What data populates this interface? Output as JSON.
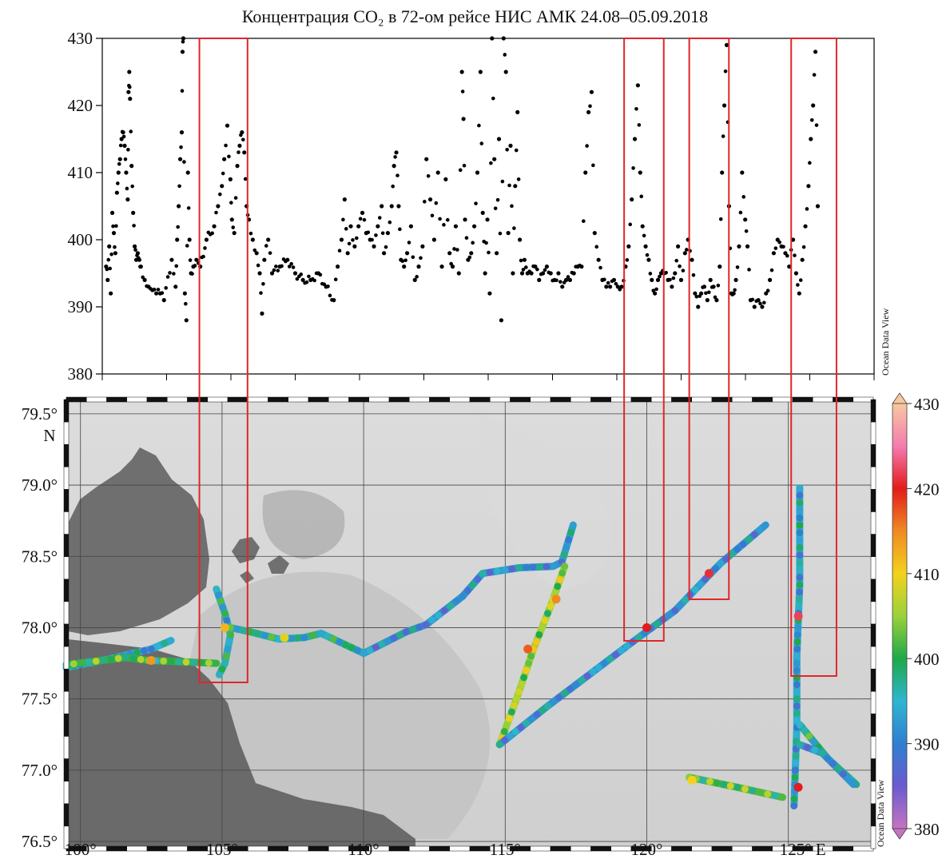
{
  "title": "Концентрация CO₂ в 72-ом рейсе НИС АМК 24.08–05.09.2018",
  "watermark": "Ocean Data View",
  "chart_data": [
    {
      "type": "scatter",
      "name": "co2_timeseries",
      "ylim": [
        380,
        430
      ],
      "yticks": [
        "380",
        "390",
        "400",
        "410",
        "420",
        "430"
      ],
      "marker_color": "#000000",
      "points": [
        [
          0.005,
          396
        ],
        [
          0.007,
          394
        ],
        [
          0.009,
          399
        ],
        [
          0.011,
          392
        ],
        [
          0.013,
          404
        ],
        [
          0.015,
          401
        ],
        [
          0.017,
          398
        ],
        [
          0.019,
          407
        ],
        [
          0.021,
          410
        ],
        [
          0.023,
          412
        ],
        [
          0.025,
          415
        ],
        [
          0.027,
          416
        ],
        [
          0.029,
          414
        ],
        [
          0.031,
          410
        ],
        [
          0.033,
          406
        ],
        [
          0.034,
          422
        ],
        [
          0.035,
          425
        ],
        [
          0.036,
          421
        ],
        [
          0.038,
          411
        ],
        [
          0.04,
          404
        ],
        [
          0.042,
          399
        ],
        [
          0.044,
          397
        ],
        [
          0.046,
          398
        ],
        [
          0.048,
          397
        ],
        [
          0.05,
          396
        ],
        [
          0.055,
          394
        ],
        [
          0.06,
          393
        ],
        [
          0.065,
          392.5
        ],
        [
          0.07,
          392
        ],
        [
          0.075,
          392
        ],
        [
          0.08,
          391
        ],
        [
          0.09,
          397
        ],
        [
          0.095,
          393
        ],
        [
          0.097,
          400
        ],
        [
          0.099,
          405
        ],
        [
          0.101,
          412
        ],
        [
          0.103,
          416
        ],
        [
          0.104,
          428
        ],
        [
          0.105,
          430
        ],
        [
          0.107,
          392
        ],
        [
          0.109,
          388
        ],
        [
          0.111,
          410
        ],
        [
          0.113,
          400
        ],
        [
          0.115,
          395
        ],
        [
          0.118,
          396
        ],
        [
          0.122,
          397
        ],
        [
          0.127,
          396
        ],
        [
          0.135,
          400
        ],
        [
          0.145,
          402
        ],
        [
          0.15,
          405
        ],
        [
          0.155,
          408
        ],
        [
          0.158,
          412
        ],
        [
          0.162,
          417
        ],
        [
          0.166,
          409
        ],
        [
          0.168,
          403
        ],
        [
          0.171,
          401
        ],
        [
          0.175,
          411
        ],
        [
          0.178,
          414
        ],
        [
          0.181,
          416
        ],
        [
          0.184,
          413
        ],
        [
          0.187,
          405
        ],
        [
          0.19,
          403
        ],
        [
          0.195,
          400
        ],
        [
          0.2,
          398
        ],
        [
          0.204,
          395
        ],
        [
          0.207,
          389
        ],
        [
          0.21,
          397
        ],
        [
          0.215,
          400
        ],
        [
          0.22,
          395
        ],
        [
          0.23,
          396
        ],
        [
          0.24,
          397
        ],
        [
          0.25,
          395
        ],
        [
          0.26,
          394
        ],
        [
          0.27,
          394
        ],
        [
          0.28,
          395
        ],
        [
          0.29,
          393
        ],
        [
          0.3,
          391
        ],
        [
          0.305,
          396
        ],
        [
          0.31,
          400
        ],
        [
          0.314,
          406
        ],
        [
          0.318,
          398
        ],
        [
          0.322,
          402
        ],
        [
          0.327,
          399
        ],
        [
          0.332,
          402
        ],
        [
          0.337,
          404
        ],
        [
          0.342,
          401
        ],
        [
          0.347,
          400
        ],
        [
          0.352,
          399
        ],
        [
          0.357,
          402
        ],
        [
          0.362,
          405
        ],
        [
          0.365,
          398
        ],
        [
          0.37,
          401
        ],
        [
          0.375,
          405
        ],
        [
          0.378,
          411
        ],
        [
          0.381,
          413
        ],
        [
          0.384,
          405
        ],
        [
          0.387,
          397
        ],
        [
          0.391,
          396
        ],
        [
          0.395,
          398
        ],
        [
          0.4,
          402
        ],
        [
          0.405,
          394
        ],
        [
          0.41,
          396
        ],
        [
          0.415,
          399
        ],
        [
          0.42,
          412
        ],
        [
          0.425,
          406
        ],
        [
          0.43,
          400
        ],
        [
          0.435,
          410
        ],
        [
          0.44,
          396
        ],
        [
          0.445,
          409
        ],
        [
          0.45,
          398
        ],
        [
          0.454,
          396
        ],
        [
          0.458,
          402
        ],
        [
          0.462,
          395
        ],
        [
          0.466,
          425
        ],
        [
          0.468,
          418
        ],
        [
          0.47,
          403
        ],
        [
          0.474,
          397
        ],
        [
          0.478,
          398
        ],
        [
          0.482,
          402
        ],
        [
          0.486,
          410
        ],
        [
          0.49,
          425
        ],
        [
          0.493,
          404
        ],
        [
          0.496,
          395
        ],
        [
          0.499,
          403
        ],
        [
          0.502,
          392
        ],
        [
          0.505,
          430
        ],
        [
          0.508,
          412
        ],
        [
          0.511,
          398
        ],
        [
          0.514,
          415
        ],
        [
          0.517,
          388
        ],
        [
          0.52,
          430
        ],
        [
          0.523,
          425
        ],
        [
          0.526,
          401
        ],
        [
          0.529,
          414
        ],
        [
          0.532,
          395
        ],
        [
          0.535,
          408
        ],
        [
          0.538,
          419
        ],
        [
          0.541,
          400
        ],
        [
          0.544,
          395
        ],
        [
          0.547,
          397
        ],
        [
          0.551,
          395
        ],
        [
          0.556,
          395
        ],
        [
          0.561,
          396
        ],
        [
          0.566,
          394
        ],
        [
          0.571,
          395
        ],
        [
          0.576,
          396
        ],
        [
          0.581,
          395
        ],
        [
          0.586,
          394
        ],
        [
          0.591,
          395
        ],
        [
          0.596,
          393
        ],
        [
          0.601,
          394
        ],
        [
          0.606,
          394
        ],
        [
          0.611,
          395
        ],
        [
          0.616,
          396
        ],
        [
          0.621,
          396
        ],
        [
          0.626,
          410
        ],
        [
          0.63,
          419
        ],
        [
          0.634,
          422
        ],
        [
          0.638,
          401
        ],
        [
          0.643,
          397
        ],
        [
          0.648,
          394
        ],
        [
          0.653,
          393
        ],
        [
          0.658,
          393
        ],
        [
          0.663,
          394
        ],
        [
          0.668,
          393
        ],
        [
          0.673,
          393
        ],
        [
          0.678,
          396
        ],
        [
          0.682,
          399
        ],
        [
          0.686,
          406
        ],
        [
          0.69,
          415
        ],
        [
          0.694,
          423
        ],
        [
          0.697,
          410
        ],
        [
          0.7,
          402
        ],
        [
          0.704,
          399
        ],
        [
          0.708,
          397
        ],
        [
          0.712,
          394
        ],
        [
          0.716,
          392
        ],
        [
          0.72,
          394
        ],
        [
          0.724,
          395
        ],
        [
          0.728,
          395
        ],
        [
          0.733,
          394
        ],
        [
          0.738,
          393
        ],
        [
          0.742,
          395
        ],
        [
          0.746,
          399
        ],
        [
          0.75,
          394
        ],
        [
          0.755,
          398
        ],
        [
          0.759,
          400
        ],
        [
          0.764,
          397
        ],
        [
          0.768,
          392
        ],
        [
          0.772,
          390
        ],
        [
          0.776,
          392
        ],
        [
          0.78,
          393
        ],
        [
          0.784,
          391
        ],
        [
          0.788,
          394
        ],
        [
          0.792,
          393
        ],
        [
          0.796,
          391
        ],
        [
          0.8,
          396
        ],
        [
          0.803,
          410
        ],
        [
          0.806,
          420
        ],
        [
          0.809,
          429
        ],
        [
          0.812,
          405
        ],
        [
          0.815,
          392
        ],
        [
          0.818,
          392
        ],
        [
          0.821,
          394
        ],
        [
          0.825,
          399
        ],
        [
          0.829,
          410
        ],
        [
          0.833,
          403
        ],
        [
          0.836,
          399
        ],
        [
          0.84,
          391
        ],
        [
          0.845,
          390
        ],
        [
          0.85,
          391
        ],
        [
          0.855,
          390
        ],
        [
          0.86,
          392
        ],
        [
          0.865,
          394
        ],
        [
          0.87,
          398
        ],
        [
          0.875,
          400
        ],
        [
          0.88,
          399
        ],
        [
          0.885,
          398
        ],
        [
          0.89,
          396
        ],
        [
          0.895,
          400
        ],
        [
          0.899,
          395
        ],
        [
          0.903,
          392
        ],
        [
          0.907,
          397
        ],
        [
          0.911,
          402
        ],
        [
          0.915,
          408
        ],
        [
          0.918,
          415
        ],
        [
          0.921,
          420
        ],
        [
          0.924,
          428
        ],
        [
          0.927,
          405
        ]
      ]
    },
    {
      "type": "scatter",
      "name": "ship_track_map",
      "lon_range": [
        99.5,
        128
      ],
      "lat_range": [
        76.45,
        79.6
      ],
      "xticks": [
        "100°",
        "105°",
        "110°",
        "115°",
        "120°",
        "125° E"
      ],
      "yticks": [
        "76.5°",
        "77.0°",
        "77.5°",
        "78.0°",
        "78.5°",
        "79.0°",
        "79.5° N"
      ],
      "colorbar": {
        "label_values": [
          "380",
          "390",
          "400",
          "410",
          "420",
          "430"
        ],
        "range": [
          380,
          430
        ],
        "colors": [
          "#c674c2",
          "#6b5bd0",
          "#2f7fd0",
          "#2fb5d2",
          "#1fa84a",
          "#9ad23a",
          "#f2d21c",
          "#f08a22",
          "#e31b1b",
          "#f47cb0",
          "#f8c8a0"
        ]
      },
      "tracks": [
        {
          "co2": 394,
          "lonlat": [
            [
              99.5,
              77.72
            ],
            [
              101,
              77.78
            ],
            [
              102.5,
              77.85
            ],
            [
              103.2,
              77.91
            ]
          ]
        },
        {
          "co2": 401,
          "lonlat": [
            [
              99.5,
              77.74
            ],
            [
              101.6,
              77.79
            ],
            [
              102.4,
              77.77
            ],
            [
              104.8,
              77.75
            ]
          ]
        },
        {
          "co2": 396,
          "lonlat": [
            [
              104.8,
              78.27
            ],
            [
              105.1,
              78.1
            ],
            [
              105.3,
              77.95
            ],
            [
              105.1,
              77.75
            ],
            [
              104.9,
              77.67
            ]
          ]
        },
        {
          "co2": 397,
          "lonlat": [
            [
              105.3,
              78.0
            ],
            [
              106,
              77.97
            ],
            [
              107,
              77.92
            ],
            [
              107.9,
              77.93
            ],
            [
              108.5,
              77.96
            ],
            [
              110,
              77.82
            ]
          ]
        },
        {
          "co2": 392,
          "lonlat": [
            [
              110,
              77.82
            ],
            [
              111.5,
              77.97
            ],
            [
              112.2,
              78.02
            ],
            [
              113.5,
              78.22
            ],
            [
              114.2,
              78.38
            ],
            [
              115.5,
              78.42
            ],
            [
              116.7,
              78.43
            ],
            [
              117.0,
              78.46
            ]
          ]
        },
        {
          "co2": 393,
          "lonlat": [
            [
              117.0,
              78.46
            ],
            [
              117.4,
              78.72
            ]
          ]
        },
        {
          "co2": 405,
          "lonlat": [
            [
              117.1,
              78.43
            ],
            [
              116.6,
              78.15
            ],
            [
              116.0,
              77.85
            ],
            [
              115.4,
              77.5
            ],
            [
              114.8,
              77.18
            ]
          ]
        },
        {
          "co2": 392,
          "lonlat": [
            [
              114.8,
              77.18
            ],
            [
              116.5,
              77.45
            ],
            [
              118.5,
              77.75
            ],
            [
              119.5,
              77.9
            ],
            [
              121,
              78.12
            ],
            [
              122.6,
              78.45
            ],
            [
              124.2,
              78.72
            ]
          ]
        },
        {
          "co2": 402,
          "lonlat": [
            [
              121.5,
              76.95
            ],
            [
              123.2,
              76.88
            ],
            [
              124.8,
              76.81
            ]
          ]
        },
        {
          "co2": 394,
          "lonlat": [
            [
              125.2,
              76.75
            ],
            [
              125.3,
              77.3
            ],
            [
              125.3,
              77.8
            ],
            [
              125.4,
              78.3
            ],
            [
              125.4,
              78.98
            ]
          ]
        },
        {
          "co2": 398,
          "lonlat": [
            [
              125.4,
              77.32
            ],
            [
              126.4,
              77.08
            ],
            [
              127.4,
              76.9
            ]
          ]
        },
        {
          "co2": 392,
          "lonlat": [
            [
              125.4,
              77.18
            ],
            [
              126.2,
              77.12
            ],
            [
              127.3,
              76.9
            ]
          ]
        }
      ],
      "hotspots": [
        {
          "co2": 414,
          "lon": 102.5,
          "lat": 77.77
        },
        {
          "co2": 412,
          "lon": 105.1,
          "lat": 78.0
        },
        {
          "co2": 409,
          "lon": 107.2,
          "lat": 77.93
        },
        {
          "co2": 415,
          "lon": 116.8,
          "lat": 78.2
        },
        {
          "co2": 417,
          "lon": 115.8,
          "lat": 77.85
        },
        {
          "co2": 420,
          "lon": 120.0,
          "lat": 78.0
        },
        {
          "co2": 421,
          "lon": 122.2,
          "lat": 78.38
        },
        {
          "co2": 422,
          "lon": 125.35,
          "lat": 78.08
        },
        {
          "co2": 420,
          "lon": 125.35,
          "lat": 76.88
        },
        {
          "co2": 410,
          "lon": 121.6,
          "lat": 76.93
        }
      ],
      "highlight_boxes_lon": [
        [
          104.2,
          105.9
        ],
        [
          119.2,
          120.6
        ],
        [
          121.5,
          122.9
        ],
        [
          125.1,
          126.7
        ]
      ],
      "highlight_color": "#e0262a"
    }
  ]
}
